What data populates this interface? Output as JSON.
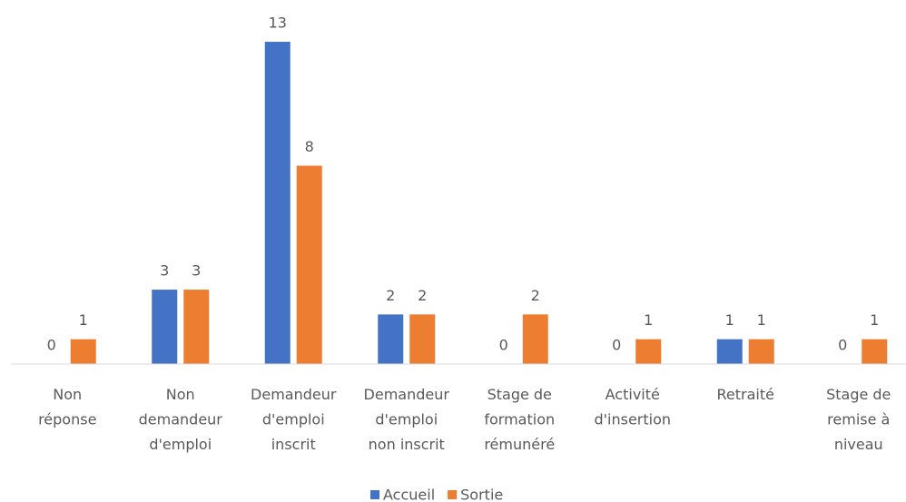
{
  "chart_data": {
    "type": "bar",
    "categories": [
      [
        "Non",
        "réponse"
      ],
      [
        "Non",
        "demandeur",
        "d'emploi"
      ],
      [
        "Demandeur",
        "d'emploi",
        "inscrit"
      ],
      [
        "Demandeur",
        "d'emploi",
        "non inscrit"
      ],
      [
        "Stage de",
        "formation",
        "rémunéré"
      ],
      [
        "Activité",
        "d'insertion"
      ],
      [
        "Retraité"
      ],
      [
        "Stage de",
        "remise à",
        "niveau"
      ]
    ],
    "series": [
      {
        "name": "Accueil",
        "color": "#4472c4",
        "values": [
          0,
          3,
          13,
          2,
          0,
          0,
          1,
          0
        ]
      },
      {
        "name": "Sortie",
        "color": "#ed7d31",
        "values": [
          1,
          3,
          8,
          2,
          2,
          1,
          1,
          1
        ]
      }
    ],
    "ylim": [
      0,
      13
    ],
    "legend": "bottom"
  }
}
